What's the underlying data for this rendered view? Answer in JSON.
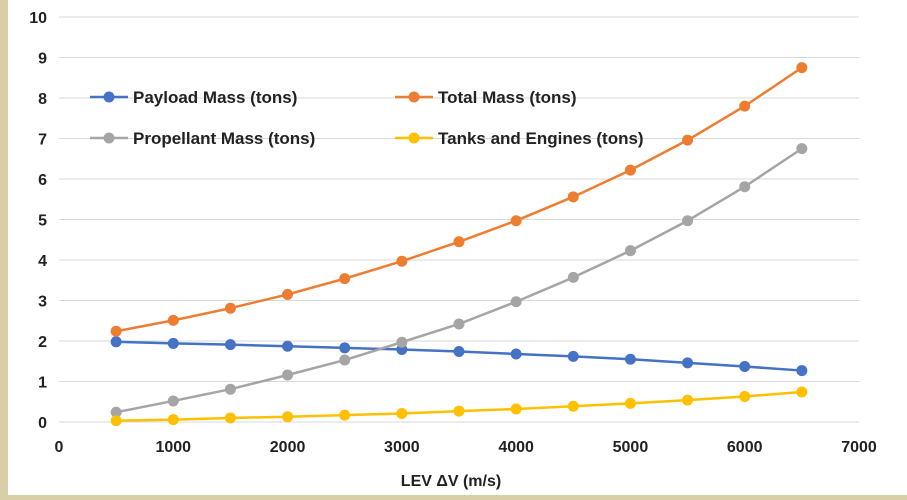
{
  "chart_data": {
    "type": "line",
    "title": "",
    "xlabel": "LEV ΔV (m/s)",
    "ylabel": "",
    "xlim": [
      0,
      7000
    ],
    "ylim": [
      0,
      10
    ],
    "x_ticks": [
      0,
      1000,
      2000,
      3000,
      4000,
      5000,
      6000,
      7000
    ],
    "y_ticks": [
      0,
      1,
      2,
      3,
      4,
      5,
      6,
      7,
      8,
      9,
      10
    ],
    "x_tick_labels": [
      "0",
      "1000",
      "2000",
      "3000",
      "4000",
      "5000",
      "6000",
      "7000"
    ],
    "y_tick_labels": [
      "0",
      "1",
      "2",
      "3",
      "4",
      "5",
      "6",
      "7",
      "8",
      "9",
      "10"
    ],
    "grid": "horizontal",
    "legend_position": "top-left",
    "x": [
      500,
      1000,
      1500,
      2000,
      2500,
      3000,
      3500,
      4000,
      4500,
      5000,
      5500,
      6000,
      6500
    ],
    "series": [
      {
        "name": "Payload Mass (tons)",
        "color": "#4472c4",
        "values": [
          1.98,
          1.94,
          1.91,
          1.87,
          1.83,
          1.79,
          1.74,
          1.68,
          1.62,
          1.55,
          1.46,
          1.37,
          1.27
        ]
      },
      {
        "name": "Total Mass (tons)",
        "color": "#ed7d31",
        "values": [
          2.24,
          2.51,
          2.81,
          3.15,
          3.54,
          3.97,
          4.45,
          4.97,
          5.56,
          6.22,
          6.96,
          7.8,
          8.75
        ]
      },
      {
        "name": "Propellant Mass (tons)",
        "color": "#a5a5a5",
        "values": [
          0.24,
          0.52,
          0.81,
          1.16,
          1.53,
          1.97,
          2.42,
          2.97,
          3.57,
          4.23,
          4.97,
          5.81,
          6.75
        ]
      },
      {
        "name": "Tanks and Engines (tons)",
        "color": "#ffc000",
        "values": [
          0.03,
          0.06,
          0.1,
          0.13,
          0.17,
          0.21,
          0.27,
          0.32,
          0.39,
          0.46,
          0.54,
          0.63,
          0.74
        ]
      }
    ]
  }
}
